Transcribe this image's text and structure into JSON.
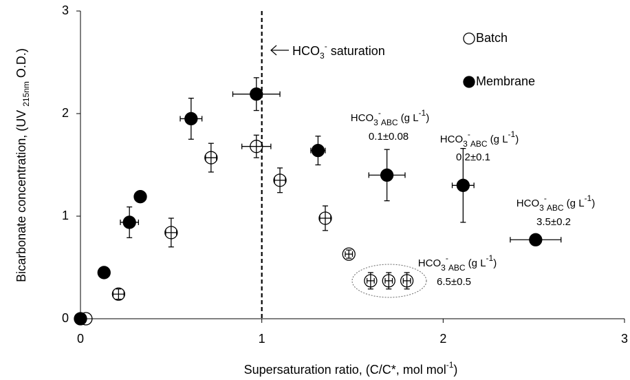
{
  "chart_data": {
    "type": "scatter",
    "x_label": [
      {
        "text": "Supersaturation  ratio, (C/C*, mol mol"
      },
      {
        "text": "-1",
        "style": "sup"
      },
      {
        "text": ")"
      }
    ],
    "y_label": [
      {
        "text": "Bicarbonate concentration, (UV "
      },
      {
        "text": "215nm",
        "style": "sub"
      },
      {
        "text": " O.D.)"
      }
    ],
    "xlim": [
      0,
      3
    ],
    "ylim": [
      0,
      3
    ],
    "xticks": [
      0,
      1,
      2,
      3
    ],
    "yticks": [
      0,
      1,
      2,
      3
    ],
    "grid": false,
    "legend": "top-right",
    "vline": 1,
    "series": [
      {
        "name": "Batch",
        "marker": "open",
        "color": "#000000",
        "x": [
          0.03,
          0.21,
          0.5,
          0.72,
          0.97,
          1.1,
          1.35,
          1.48,
          1.6,
          1.7,
          1.8
        ],
        "values": [
          0.0,
          0.24,
          0.84,
          1.57,
          1.68,
          1.35,
          0.98,
          0.63,
          0.37,
          0.37,
          0.37
        ],
        "yerr": [
          null,
          0.05,
          0.14,
          0.14,
          0.11,
          0.12,
          0.12,
          0.04,
          0.08,
          0.08,
          0.08
        ],
        "xerr": [
          null,
          0.03,
          0.03,
          0.03,
          0.08,
          0.03,
          0.03,
          0.02,
          0.02,
          0.02,
          0.02
        ]
      },
      {
        "name": "Membrane",
        "marker": "filled",
        "color": "#000000",
        "x": [
          0.0,
          0.13,
          0.27,
          0.33,
          0.61,
          0.97,
          1.31,
          1.69,
          2.11,
          2.51
        ],
        "values": [
          0.0,
          0.45,
          0.94,
          1.19,
          1.95,
          2.19,
          1.64,
          1.4,
          1.3,
          0.77
        ],
        "yerr": [
          null,
          null,
          0.15,
          0.04,
          0.2,
          0.16,
          0.14,
          0.25,
          0.36,
          0.05
        ],
        "xerr": [
          null,
          null,
          0.05,
          null,
          0.06,
          0.13,
          0.04,
          0.1,
          0.06,
          0.14
        ]
      }
    ],
    "annotations": [
      {
        "lines": [
          [
            {
              "text": "HCO"
            },
            {
              "text": "3",
              "style": "sub"
            },
            {
              "text": "-",
              "style": "sup"
            },
            {
              "text": " saturation"
            }
          ]
        ]
      },
      {
        "lines": [
          [
            {
              "text": "HCO"
            },
            {
              "text": "3",
              "style": "sub"
            },
            {
              "text": "-",
              "style": "sup"
            },
            {
              "text": "ABC",
              "style": "sub"
            },
            {
              "text": " (g L"
            },
            {
              "text": "-1",
              "style": "sup"
            },
            {
              "text": ")"
            }
          ],
          [
            {
              "text": "0.1±0.08"
            }
          ]
        ]
      },
      {
        "lines": [
          [
            {
              "text": "HCO"
            },
            {
              "text": "3",
              "style": "sub"
            },
            {
              "text": "-",
              "style": "sup"
            },
            {
              "text": "ABC",
              "style": "sub"
            },
            {
              "text": " (g L"
            },
            {
              "text": "-1",
              "style": "sup"
            },
            {
              "text": ")"
            }
          ],
          [
            {
              "text": "0.2±0.1"
            }
          ]
        ]
      },
      {
        "lines": [
          [
            {
              "text": "HCO"
            },
            {
              "text": "3",
              "style": "sub"
            },
            {
              "text": "-",
              "style": "sup"
            },
            {
              "text": "ABC",
              "style": "sub"
            },
            {
              "text": " (g L"
            },
            {
              "text": "-1",
              "style": "sup"
            },
            {
              "text": ")"
            }
          ],
          [
            {
              "text": "3.5±0.2"
            }
          ]
        ]
      },
      {
        "lines": [
          [
            {
              "text": "HCO"
            },
            {
              "text": "3",
              "style": "sub"
            },
            {
              "text": "-",
              "style": "sup"
            },
            {
              "text": "ABC",
              "style": "sub"
            },
            {
              "text": " (g L"
            },
            {
              "text": "-1",
              "style": "sup"
            },
            {
              "text": ")"
            }
          ],
          [
            {
              "text": "6.5±0.5"
            }
          ]
        ]
      }
    ]
  }
}
